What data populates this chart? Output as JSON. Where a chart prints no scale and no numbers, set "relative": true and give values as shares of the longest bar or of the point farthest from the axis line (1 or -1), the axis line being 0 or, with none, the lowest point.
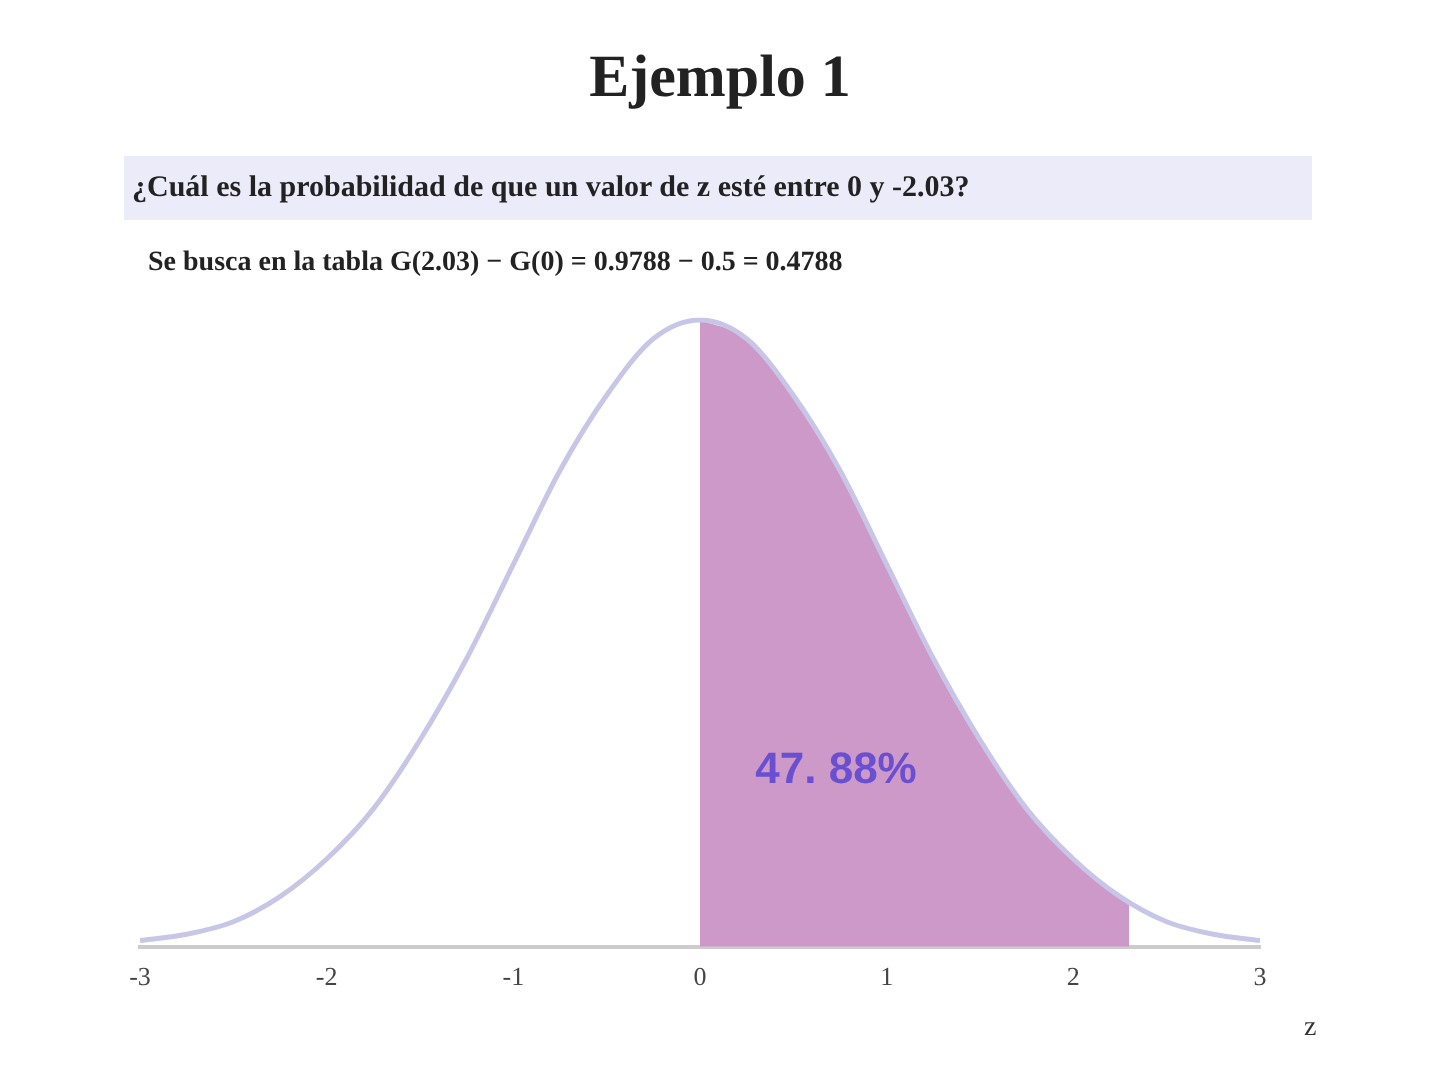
{
  "chart_data": {
    "type": "line",
    "title": "Ejemplo 1",
    "subtitle": "¿Cuál es la probabilidad de que un valor de z esté entre 0 y -2.03?",
    "xlabel": "z",
    "relative": true,
    "xlim": [
      -3,
      3
    ],
    "xticks": [
      -3,
      -2,
      -1,
      0,
      1,
      2,
      3
    ],
    "grid": false,
    "legend": false,
    "marker": "none",
    "series": [
      {
        "color": "#c8c6e6",
        "x": [
          -3,
          -2.75,
          -2.5,
          -2.25,
          -2,
          -1.75,
          -1.5,
          -1.25,
          -1,
          -0.75,
          -0.5,
          -0.25,
          0,
          0.25,
          0.5,
          0.75,
          1,
          1.25,
          1.5,
          1.75,
          2,
          2.25,
          2.5,
          2.75,
          3
        ],
        "values": [
          0.01,
          0.02,
          0.04,
          0.08,
          0.14,
          0.22,
          0.33,
          0.46,
          0.61,
          0.76,
          0.88,
          0.97,
          1,
          0.97,
          0.88,
          0.76,
          0.61,
          0.46,
          0.33,
          0.22,
          0.14,
          0.08,
          0.04,
          0.02,
          0.01
        ]
      },
      {
        "type": "area",
        "color": "#cc99c8",
        "x": [
          0,
          0.25,
          0.5,
          0.75,
          1,
          1.25,
          1.5,
          1.75,
          2,
          2.25,
          2.3
        ],
        "values": [
          1,
          0.97,
          0.88,
          0.76,
          0.61,
          0.46,
          0.33,
          0.22,
          0.14,
          0.08,
          0.07
        ]
      }
    ],
    "annotations": [
      "Se busca en la tabla G(2.03) − G(0) = 0.9788 − 0.5 = 0.4788",
      "47. 88%"
    ]
  }
}
